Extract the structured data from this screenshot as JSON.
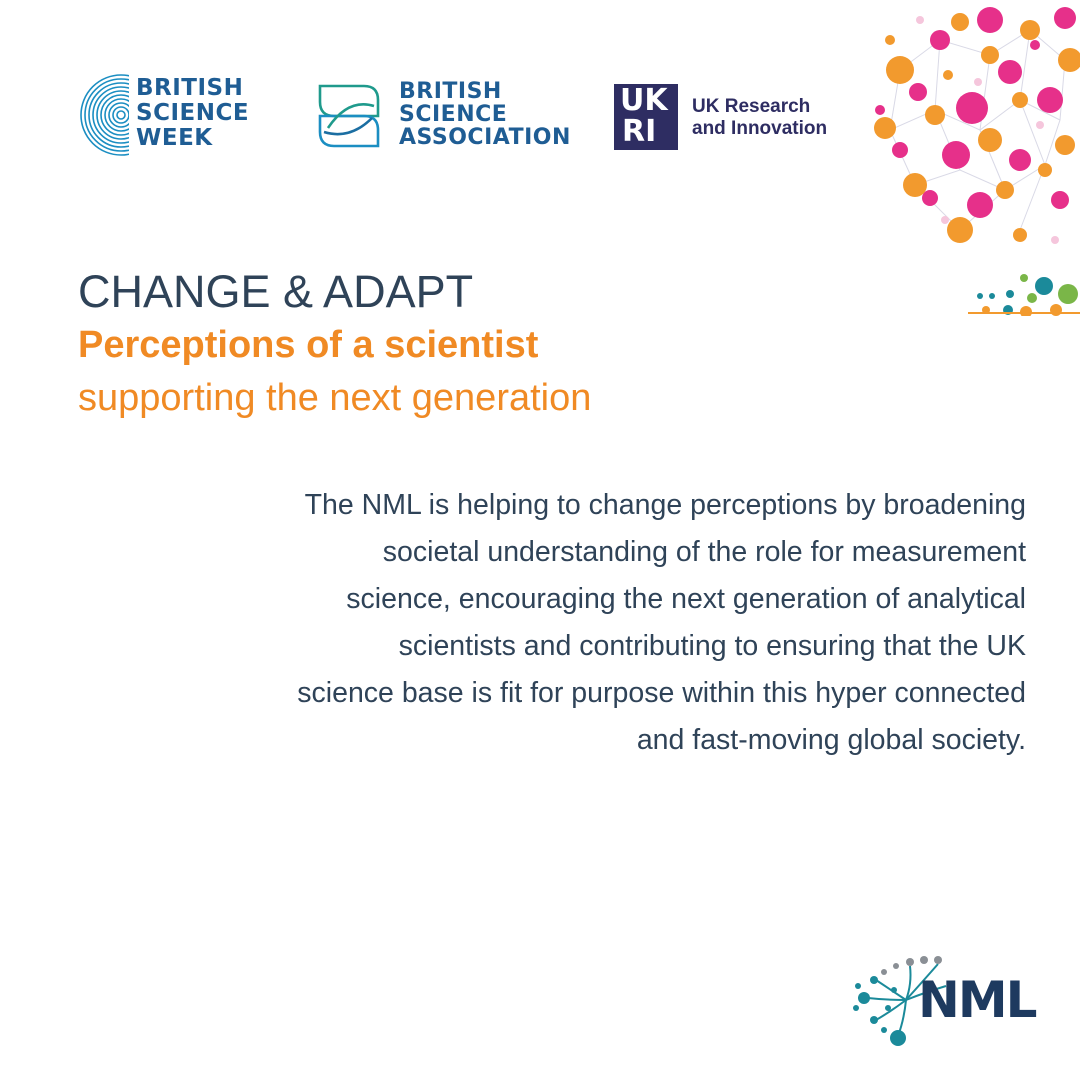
{
  "logos": {
    "british_science_week": {
      "lines": [
        "BRITISH",
        "SCIENCE",
        "WEEK"
      ],
      "color": "#1f5d94"
    },
    "british_science_association": {
      "lines": [
        "BRITISH",
        "SCIENCE",
        "ASSOCIATION"
      ],
      "color": "#1f5d94"
    },
    "ukri": {
      "mark_top": "UK",
      "mark_bottom": "RI",
      "lines": [
        "UK Research",
        "and Innovation"
      ],
      "color": "#2e2d62"
    },
    "nml": {
      "text": "NML",
      "color": "#1e3a5f"
    }
  },
  "heading": {
    "title": "CHANGE & ADAPT",
    "subtitle": "Perceptions of a scientist",
    "tagline": "supporting the next generation"
  },
  "body": {
    "lines": [
      "The NML is helping to change perceptions by broadening",
      "societal understanding of the role for measurement",
      "science, encouraging the next generation of analytical",
      "scientists and contributing to ensuring that the UK",
      "science base is fit for purpose within this hyper connected",
      "and fast-moving global society."
    ]
  },
  "colors": {
    "navy_text": "#2f4358",
    "accent_orange": "#f08a24",
    "accent_magenta": "#e6308a",
    "accent_teal": "#1b8a9a",
    "accent_green": "#7ab648",
    "background": "#ffffff"
  }
}
